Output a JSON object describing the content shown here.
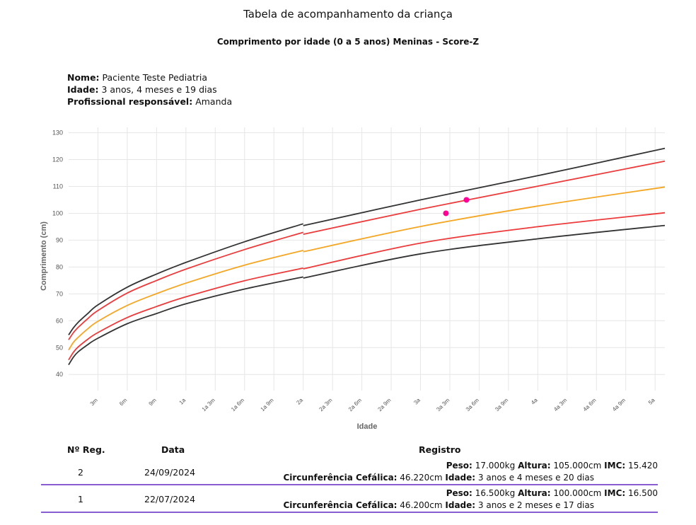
{
  "header": {
    "title": "Tabela de acompanhamento da criança",
    "subtitle": "Comprimento por idade (0 a 5 anos) Meninas - Score-Z"
  },
  "patient": {
    "name_label": "Nome:",
    "name": "Paciente Teste Pediatria",
    "age_label": "Idade:",
    "age": "3 anos, 4 meses e 19 dias",
    "professional_label": "Profissional responsável:",
    "professional": "Amanda"
  },
  "chart_data": {
    "type": "line",
    "xlabel": "Idade",
    "ylabel": "Comprimento (cm)",
    "ylim": [
      34,
      132
    ],
    "xlim_months": [
      0,
      61
    ],
    "y_ticks": [
      40,
      50,
      60,
      70,
      80,
      90,
      100,
      110,
      120,
      130
    ],
    "x_ticks": [
      {
        "m": 3,
        "label": "3m"
      },
      {
        "m": 6,
        "label": "6m"
      },
      {
        "m": 9,
        "label": "9m"
      },
      {
        "m": 12,
        "label": "1a"
      },
      {
        "m": 15,
        "label": "1a 3m"
      },
      {
        "m": 18,
        "label": "1a 6m"
      },
      {
        "m": 21,
        "label": "1a 9m"
      },
      {
        "m": 24,
        "label": "2a"
      },
      {
        "m": 27,
        "label": "2a 3m"
      },
      {
        "m": 30,
        "label": "2a 6m"
      },
      {
        "m": 33,
        "label": "2a 9m"
      },
      {
        "m": 36,
        "label": "3a"
      },
      {
        "m": 39,
        "label": "3a 3m"
      },
      {
        "m": 42,
        "label": "3a 6m"
      },
      {
        "m": 45,
        "label": "3a 9m"
      },
      {
        "m": 48,
        "label": "4a"
      },
      {
        "m": 51,
        "label": "4a 3m"
      },
      {
        "m": 54,
        "label": "4a 6m"
      },
      {
        "m": 57,
        "label": "4a 9m"
      },
      {
        "m": 60,
        "label": "5a"
      }
    ],
    "grid": true,
    "series": [
      {
        "color": "#333333",
        "x": [
          0,
          0.5,
          1,
          2,
          3,
          6,
          9,
          12,
          18,
          24,
          24.01,
          36,
          48,
          61
        ],
        "y": [
          43.6,
          46.5,
          48.5,
          51.2,
          53.5,
          58.9,
          62.7,
          66.3,
          71.8,
          76.3,
          75.9,
          84.9,
          90.5,
          95.5
        ]
      },
      {
        "color": "#ee3a3a",
        "x": [
          0,
          0.5,
          1,
          2,
          3,
          6,
          9,
          12,
          18,
          24,
          24.01,
          36,
          48,
          61
        ],
        "y": [
          45.4,
          48.3,
          50.3,
          53.2,
          55.6,
          61.2,
          65.3,
          68.9,
          74.9,
          79.6,
          79.3,
          88.9,
          95.0,
          100.2
        ]
      },
      {
        "color": "#f5a623",
        "x": [
          0,
          0.5,
          1,
          2,
          3,
          6,
          9,
          12,
          18,
          24,
          24.01,
          36,
          48,
          61
        ],
        "y": [
          49.1,
          52.0,
          53.9,
          57.1,
          59.8,
          65.7,
          70.1,
          74.0,
          80.7,
          86.2,
          85.7,
          95.1,
          102.7,
          109.8
        ]
      },
      {
        "color": "#ee3a3a",
        "x": [
          0,
          0.5,
          1,
          2,
          3,
          6,
          9,
          12,
          18,
          24,
          24.01,
          36,
          48,
          61
        ],
        "y": [
          52.9,
          55.6,
          57.6,
          60.9,
          63.8,
          70.3,
          75.0,
          79.2,
          86.5,
          92.9,
          92.2,
          101.5,
          110.1,
          119.4
        ]
      },
      {
        "color": "#333333",
        "x": [
          0,
          0.5,
          1,
          2,
          3,
          6,
          9,
          12,
          18,
          24,
          24.01,
          36,
          48,
          61
        ],
        "y": [
          54.7,
          57.4,
          59.5,
          62.8,
          65.9,
          72.5,
          77.4,
          81.7,
          89.4,
          96.1,
          95.4,
          105.0,
          114.0,
          124.2
        ]
      }
    ],
    "points": [
      {
        "x": 38.6,
        "y": 100.0,
        "color": "#ff0096"
      },
      {
        "x": 40.7,
        "y": 105.0,
        "color": "#ff0096"
      }
    ]
  },
  "records": {
    "col_reg": "Nº Reg.",
    "col_date": "Data",
    "col_record": "Registro",
    "rows": [
      {
        "reg": "2",
        "date": "24/09/2024",
        "peso_label": "Peso:",
        "peso": "17.000kg",
        "altura_label": "Altura:",
        "altura": "105.000cm",
        "imc_label": "IMC:",
        "imc": "15.420",
        "cc_label": "Circunferência Cefálica:",
        "cc": "46.220cm",
        "idade_label": "Idade:",
        "idade": "3 anos e 4 meses e 20 dias"
      },
      {
        "reg": "1",
        "date": "22/07/2024",
        "peso_label": "Peso:",
        "peso": "16.500kg",
        "altura_label": "Altura:",
        "altura": "100.000cm",
        "imc_label": "IMC:",
        "imc": "16.500",
        "cc_label": "Circunferência Cefálica:",
        "cc": "46.200cm",
        "idade_label": "Idade:",
        "idade": "3 anos e 2 meses e 17 dias"
      }
    ]
  }
}
